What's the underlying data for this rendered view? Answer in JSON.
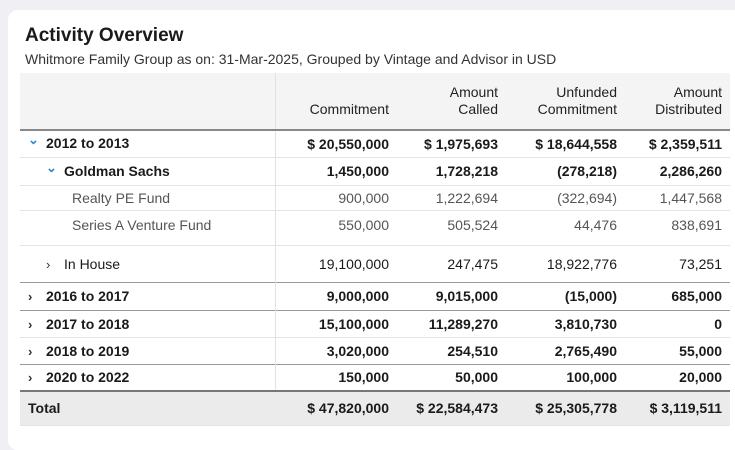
{
  "header": {
    "title": "Activity Overview",
    "subtitle": "Whitmore Family Group as on: 31-Mar-2025, Grouped by Vintage and Advisor in USD"
  },
  "columns": [
    "",
    "Commitment",
    "Amount\nCalled",
    "Unfunded\nCommitment",
    "Amount\nDistributed"
  ],
  "col": {
    "c1": "Commitment",
    "c2a": "Amount",
    "c2b": "Called",
    "c3a": "Unfunded",
    "c3b": "Commitment",
    "c4a": "Amount",
    "c4b": "Distributed"
  },
  "rows": [
    {
      "label": "2012 to 2013",
      "expanded": true,
      "values": [
        "$ 20,550,000",
        "$ 1,975,693",
        "$ 18,644,558",
        "$ 2,359,511"
      ]
    },
    {
      "label": "Goldman Sachs",
      "expanded": true,
      "values": [
        "1,450,000",
        "1,728,218",
        "(278,218)",
        "2,286,260"
      ]
    },
    {
      "label": "Realty PE Fund",
      "values": [
        "900,000",
        "1,222,694",
        "(322,694)",
        "1,447,568"
      ]
    },
    {
      "label": "Series A Venture Fund",
      "values": [
        "550,000",
        "505,524",
        "44,476",
        "838,691"
      ]
    },
    {
      "label": "In House",
      "expanded": false,
      "values": [
        "19,100,000",
        "247,475",
        "18,922,776",
        "73,251"
      ]
    },
    {
      "label": "2016 to 2017",
      "expanded": false,
      "values": [
        "9,000,000",
        "9,015,000",
        "(15,000)",
        "685,000"
      ]
    },
    {
      "label": "2017 to 2018",
      "expanded": false,
      "values": [
        "15,100,000",
        "11,289,270",
        "3,810,730",
        "0"
      ]
    },
    {
      "label": "2018 to 2019",
      "expanded": false,
      "values": [
        "3,020,000",
        "254,510",
        "2,765,490",
        "55,000"
      ]
    },
    {
      "label": "2020 to 2022",
      "expanded": false,
      "values": [
        "150,000",
        "50,000",
        "100,000",
        "20,000"
      ]
    }
  ],
  "total": {
    "label": "Total",
    "values": [
      "$ 47,820,000",
      "$ 22,584,473",
      "$ 25,305,778",
      "$ 3,119,511"
    ]
  },
  "icons": {
    "expanded": "chevron-down-icon",
    "collapsed": "chevron-right-icon"
  },
  "colors": {
    "accent": "#2a8ad4"
  }
}
